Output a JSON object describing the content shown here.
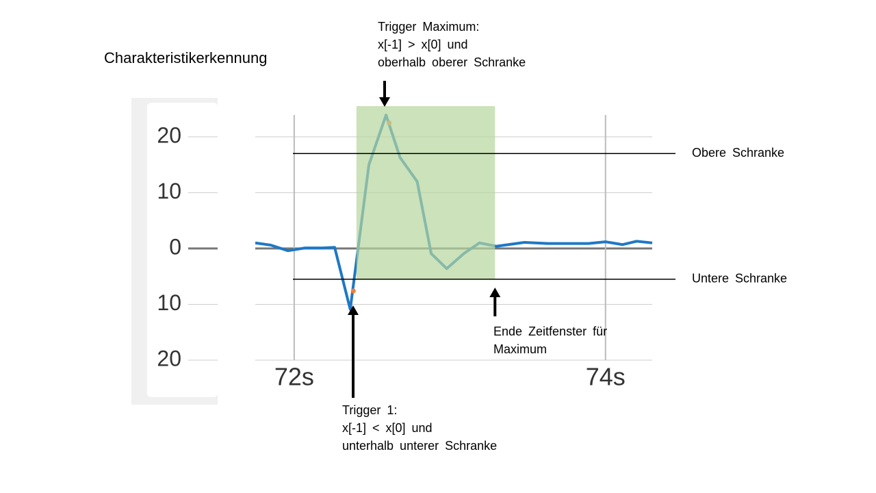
{
  "title": "Charakteristikerkennung",
  "chart_data": {
    "type": "line",
    "x": [
      71.75,
      71.85,
      71.96,
      72.07,
      72.18,
      72.26,
      72.36,
      72.48,
      72.59,
      72.68,
      72.79,
      72.88,
      72.98,
      73.09,
      73.19,
      73.3,
      73.48,
      73.63,
      73.89,
      74.0,
      74.11,
      74.2,
      74.3
    ],
    "series": [
      {
        "color": "#1f77c4",
        "values": [
          1.0,
          0.6,
          -0.4,
          0.1,
          0.1,
          0.2,
          -10.9,
          15.0,
          23.9,
          16.3,
          12.0,
          -0.9,
          -3.6,
          -0.9,
          1.0,
          0.4,
          1.1,
          0.9,
          0.9,
          1.2,
          0.7,
          1.3,
          1.0
        ]
      }
    ],
    "markers": {
      "color": "#f07f3c",
      "x": [
        72.38,
        72.61
      ],
      "y": [
        -7.6,
        22.5
      ]
    },
    "xlim": [
      71.75,
      74.3
    ],
    "ylim": [
      -20,
      25.5
    ],
    "xticks": [
      {
        "value": 72,
        "label": "72s"
      },
      {
        "value": 74,
        "label": "74s"
      }
    ],
    "yticks": [
      {
        "value": 20,
        "label": "20"
      },
      {
        "value": 10,
        "label": "10"
      },
      0,
      {
        "value": -10,
        "label": "10"
      },
      {
        "value": -20,
        "label": "20"
      }
    ],
    "grid": true,
    "window": {
      "x": [
        72.4,
        73.29
      ],
      "color": "#b5d69c"
    },
    "upper_bound": {
      "value": 17,
      "label": "Obere Schranke"
    },
    "lower_bound": {
      "value": -5.5,
      "label": "Untere Schranke"
    },
    "annotations": {
      "trigger_max": [
        "Trigger Maximum:",
        "x[-1] > x[0] und",
        "oberhalb oberer Schranke"
      ],
      "trigger_1": [
        "Trigger 1:",
        "x[-1] < x[0] und",
        "unterhalb unterer Schranke"
      ],
      "window_end": [
        "Ende Zeitfenster für",
        "Maximum"
      ]
    }
  }
}
